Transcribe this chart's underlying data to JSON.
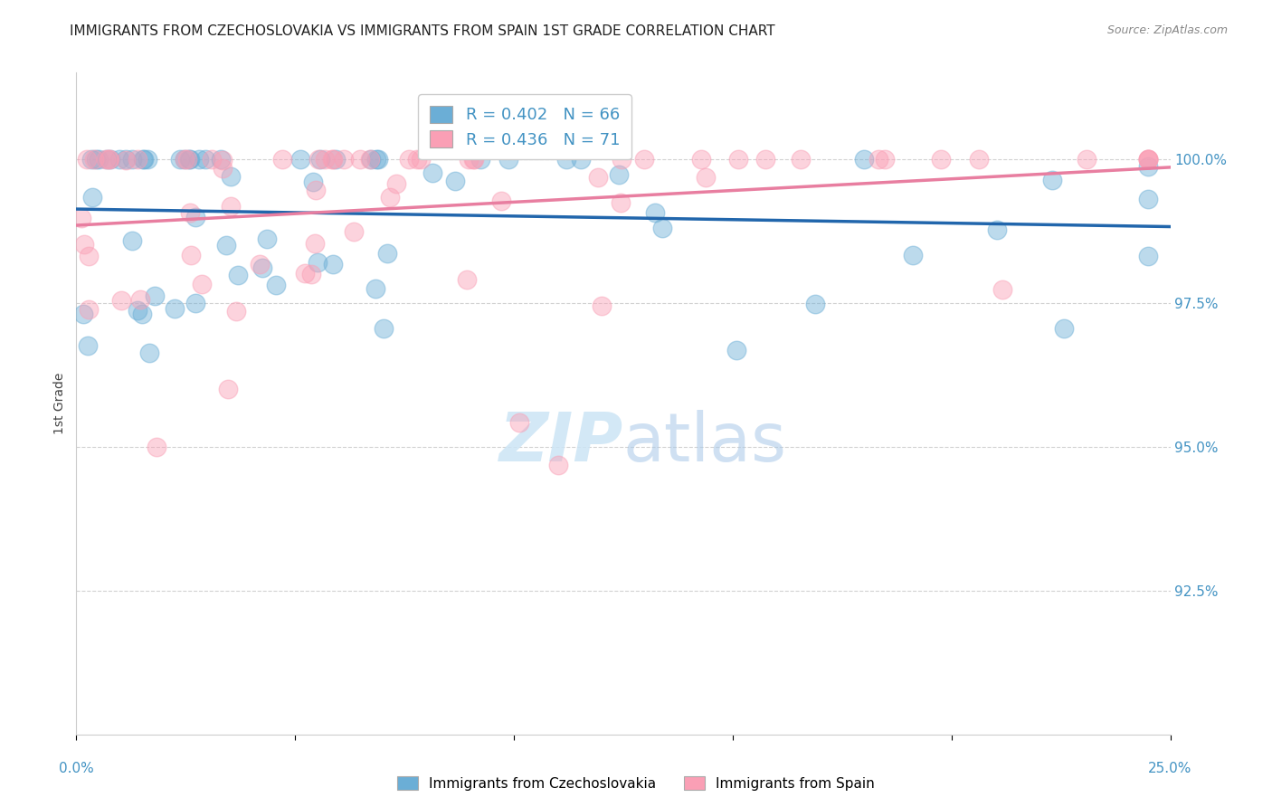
{
  "title": "IMMIGRANTS FROM CZECHOSLOVAKIA VS IMMIGRANTS FROM SPAIN 1ST GRADE CORRELATION CHART",
  "source": "Source: ZipAtlas.com",
  "ylabel": "1st Grade",
  "legend_label_blue": "Immigrants from Czechoslovakia",
  "legend_label_pink": "Immigrants from Spain",
  "R_blue": 0.402,
  "N_blue": 66,
  "R_pink": 0.436,
  "N_pink": 71,
  "color_blue": "#6baed6",
  "color_pink": "#fa9fb5",
  "color_blue_line": "#2166ac",
  "color_pink_line": "#e87ea0",
  "color_axis_labels": "#4393c3",
  "ytick_values": [
    92.5,
    95.0,
    97.5,
    100.0
  ],
  "xlim": [
    0.0,
    25.0
  ],
  "ylim": [
    90.0,
    101.5
  ],
  "watermark_zip": "ZIP",
  "watermark_atlas": "atlas"
}
